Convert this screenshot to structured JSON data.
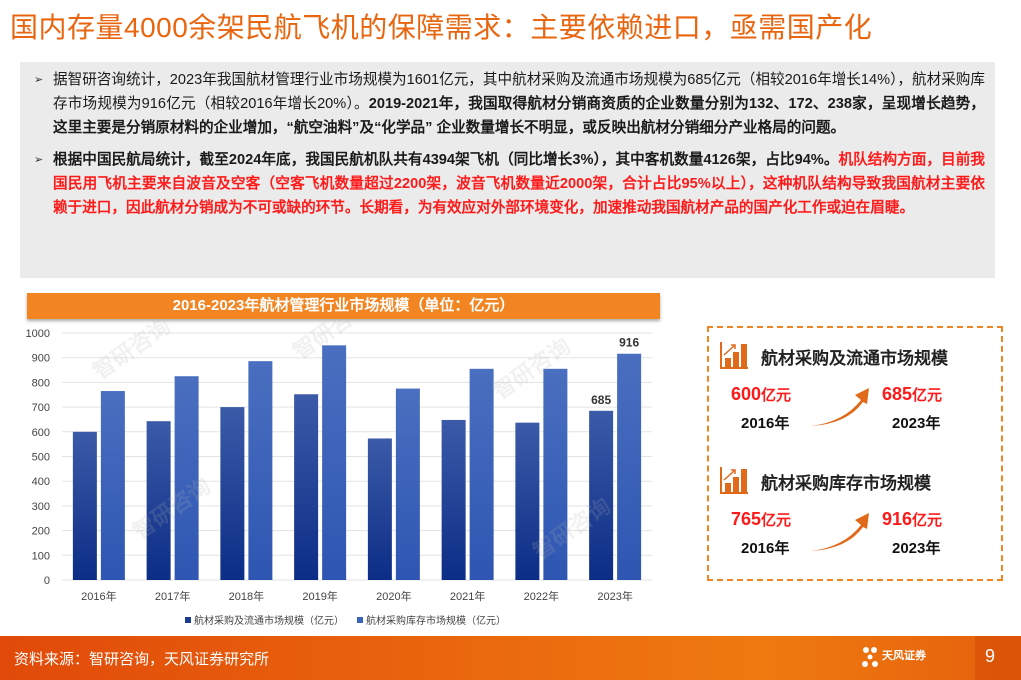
{
  "title": "国内存量4000余架民航飞机的保障需求：主要依赖进口，亟需国产化",
  "paragraphs": [
    {
      "normal": "据智研咨询统计，2023年我国航材管理行业市场规模为1601亿元，其中航材采购及流通市场规模为685亿元（相较2016年增长14%），航材采购库存市场规模为916亿元（相较2016年增长20%）。",
      "bold": "2019-2021年，我国取得航材分销商资质的企业数量分别为132、172、238家，呈现增长趋势，这里主要是分销原材料的企业增加，“航空油料”及“化学品” 企业数量增长不明显，或反映出航材分销细分产业格局的问题。"
    },
    {
      "normal": "根据中国民航局统计，截至2024年底，我国民航机队共有4394架飞机（同比增长3%），其中客机数量4126架，占比94%。",
      "red": "机队结构方面，目前我国民用飞机主要来自波音及空客（空客飞机数量超过2200架，波音飞机数量近2000架，合计占比95%以上），这种机队结构导致我国航材主要依赖于进口，因此航材分销成为不可或缺的环节。长期看，为有效应对外部环境变化，加速推动我国航材产品的国产化工作或迫在眉睫。"
    }
  ],
  "chart_data": {
    "type": "bar",
    "title": "2016-2023年航材管理行业市场规模（单位：亿元）",
    "categories": [
      "2016年",
      "2017年",
      "2018年",
      "2019年",
      "2020年",
      "2021年",
      "2022年",
      "2023年"
    ],
    "series": [
      {
        "name": "航材采购及流通市场规模（亿元）",
        "values": [
          600,
          643,
          700,
          752,
          573,
          648,
          637,
          685
        ],
        "color": "#1a3d8f"
      },
      {
        "name": "航材采购库存市场规模（亿元）",
        "values": [
          765,
          825,
          886,
          950,
          775,
          855,
          855,
          916
        ],
        "color": "#3a64b8"
      }
    ],
    "data_labels": {
      "685": "685",
      "916": "916"
    },
    "ylim": [
      0,
      1000
    ],
    "yticks": [
      "0",
      "100",
      "200",
      "300",
      "400",
      "500",
      "600",
      "700",
      "800",
      "900",
      "1000"
    ],
    "watermark": "智研咨询"
  },
  "panel": {
    "items": [
      {
        "title": "航材采购及流通市场规模",
        "from_value": "600",
        "from_year": "2016年",
        "to_value": "685",
        "to_year": "2023年",
        "unit": "亿元"
      },
      {
        "title": "航材采购库存市场规模",
        "from_value": "765",
        "from_year": "2016年",
        "to_value": "916",
        "to_year": "2023年",
        "unit": "亿元"
      }
    ]
  },
  "footer": {
    "source": "资料来源：智研咨询，天风证券研究所",
    "logo": "天风证券",
    "page": "9"
  }
}
